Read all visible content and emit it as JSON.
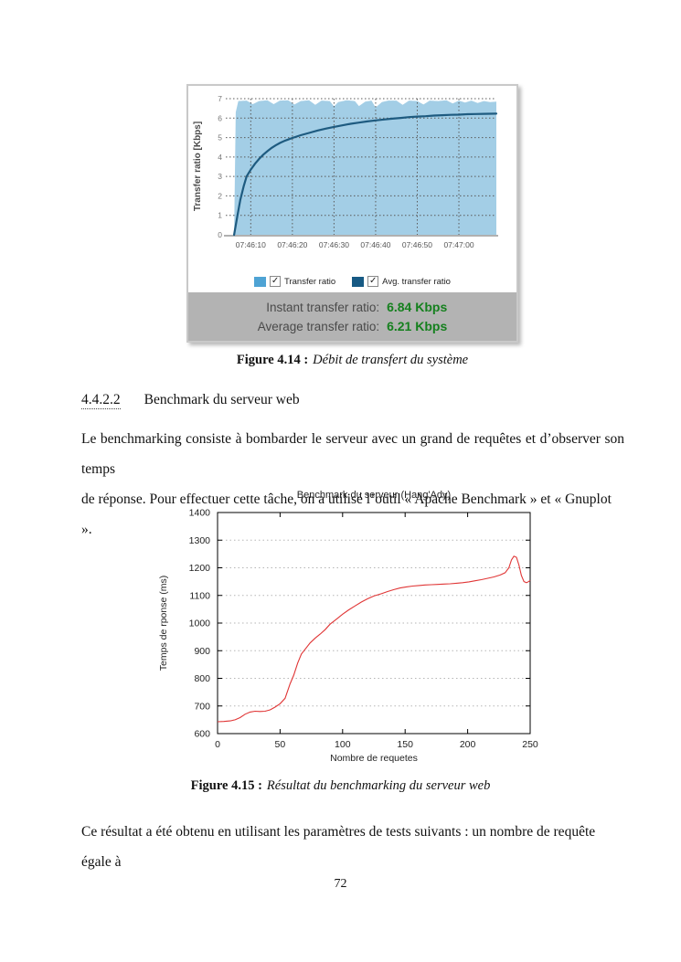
{
  "document": {
    "section": {
      "number": "4.4.2.2",
      "title": "Benchmark du serveur web"
    },
    "captions": {
      "fig414": {
        "label": "Figure 4.14 :",
        "text": "Débit de transfert du système"
      },
      "fig415": {
        "label": "Figure 4.15 :",
        "text": "Résultat du benchmarking du serveur web"
      }
    },
    "paragraph1": {
      "line1": "Le benchmarking consiste à bombarder le serveur avec un grand de requêtes et d’observer son temps",
      "line2": "de réponse. Pour effectuer cette tâche, on a utilisé l’outil « Apache Benchmark » et « Gnuplot »."
    },
    "paragraph2": "Ce résultat a été obtenu en utilisant les paramètres de tests suivants : un nombre de requête égale à",
    "page_number": "72"
  },
  "icons": {
    "checkbox_check": "✓"
  },
  "transfer_panel": {
    "legend": [
      {
        "label": "Transfer ratio",
        "checked": true,
        "swatch_color": "#4ea3d4"
      },
      {
        "label": "Avg. transfer ratio",
        "checked": true,
        "swatch_color": "#175a84"
      }
    ],
    "footer": [
      {
        "label": "Instant transfer ratio:",
        "value": "6.84 Kbps"
      },
      {
        "label": "Average transfer ratio:",
        "value": "6.21 Kbps"
      }
    ],
    "value_color": "#15801e",
    "footer_bg": "#b3b3b3"
  },
  "chart_data": [
    {
      "type": "area",
      "title": "",
      "ylabel": "Transfer ratio [Kbps]",
      "ylim": [
        0,
        7
      ],
      "y_ticks": [
        0,
        1,
        2,
        3,
        4,
        5,
        6,
        7
      ],
      "xlim_seconds_after_074600": [
        4,
        69
      ],
      "x_tick_positions": [
        10,
        20,
        30,
        40,
        50,
        60
      ],
      "x_tick_labels": [
        "07:46:10",
        "07:46:20",
        "07:46:30",
        "07:46:40",
        "07:46:50",
        "07:47:00"
      ],
      "grid": "dotted-both",
      "colors": {
        "area_fill": "#a3cee6",
        "avg_line": "#1e5b80",
        "grid": "#5a5a5a",
        "tick_text": "#555555",
        "ytick_text": "#777777",
        "axis": "#b0b0b0",
        "ylabel_text": "#4a4a4a"
      },
      "series": [
        {
          "name": "Transfer ratio",
          "style": "area",
          "points": [
            [
              6,
              0
            ],
            [
              6.4,
              6.3
            ],
            [
              7,
              6.88
            ],
            [
              9,
              6.9
            ],
            [
              10.5,
              6.72
            ],
            [
              12,
              6.88
            ],
            [
              14,
              6.92
            ],
            [
              15.5,
              6.72
            ],
            [
              17,
              6.9
            ],
            [
              19,
              6.92
            ],
            [
              20.5,
              6.7
            ],
            [
              22,
              6.88
            ],
            [
              24,
              6.92
            ],
            [
              25.5,
              6.68
            ],
            [
              27,
              6.9
            ],
            [
              29,
              6.88
            ],
            [
              30,
              6.6
            ],
            [
              31,
              6.82
            ],
            [
              33,
              6.92
            ],
            [
              35,
              6.88
            ],
            [
              36,
              6.62
            ],
            [
              37.5,
              6.85
            ],
            [
              39,
              6.9
            ],
            [
              40,
              6.55
            ],
            [
              41.5,
              6.82
            ],
            [
              43,
              6.9
            ],
            [
              45,
              6.9
            ],
            [
              46.5,
              6.68
            ],
            [
              48,
              6.9
            ],
            [
              50,
              6.88
            ],
            [
              51.5,
              6.7
            ],
            [
              53,
              6.9
            ],
            [
              55,
              6.88
            ],
            [
              57,
              6.92
            ],
            [
              58.5,
              6.75
            ],
            [
              60,
              6.9
            ],
            [
              61.5,
              6.8
            ],
            [
              63,
              6.9
            ],
            [
              64.5,
              6.78
            ],
            [
              66,
              6.88
            ],
            [
              67.5,
              6.82
            ],
            [
              69,
              6.85
            ]
          ]
        },
        {
          "name": "Avg. transfer ratio",
          "style": "line",
          "points": [
            [
              6,
              0
            ],
            [
              6.8,
              1.0
            ],
            [
              7.5,
              1.8
            ],
            [
              8.3,
              2.5
            ],
            [
              9,
              3.0
            ],
            [
              10,
              3.35
            ],
            [
              11,
              3.65
            ],
            [
              12,
              3.9
            ],
            [
              13,
              4.12
            ],
            [
              14,
              4.3
            ],
            [
              15,
              4.47
            ],
            [
              16,
              4.6
            ],
            [
              17,
              4.72
            ],
            [
              18,
              4.82
            ],
            [
              19,
              4.9
            ],
            [
              20,
              4.98
            ],
            [
              22,
              5.12
            ],
            [
              24,
              5.24
            ],
            [
              26,
              5.36
            ],
            [
              28,
              5.46
            ],
            [
              30,
              5.55
            ],
            [
              32,
              5.63
            ],
            [
              34,
              5.71
            ],
            [
              36,
              5.77
            ],
            [
              38,
              5.83
            ],
            [
              40,
              5.88
            ],
            [
              42,
              5.93
            ],
            [
              44,
              5.97
            ],
            [
              46,
              6.01
            ],
            [
              48,
              6.05
            ],
            [
              50,
              6.08
            ],
            [
              52,
              6.1
            ],
            [
              54,
              6.13
            ],
            [
              56,
              6.15
            ],
            [
              58,
              6.17
            ],
            [
              60,
              6.18
            ],
            [
              62,
              6.2
            ],
            [
              64,
              6.21
            ],
            [
              66,
              6.22
            ],
            [
              69,
              6.23
            ]
          ]
        }
      ],
      "readouts": {
        "instant": "6.84 Kbps",
        "average": "6.21 Kbps"
      }
    },
    {
      "type": "line",
      "title": "Benchmark du serveur (Hang'Ady)",
      "xlabel": "Nombre de requetes",
      "ylabel": "Temps de rponse (ms)",
      "xlim": [
        0,
        250
      ],
      "ylim": [
        600,
        1400
      ],
      "x_ticks": [
        0,
        50,
        100,
        150,
        200,
        250
      ],
      "y_ticks": [
        600,
        700,
        800,
        900,
        1000,
        1100,
        1200,
        1300,
        1400
      ],
      "grid": "dotted-horizontal",
      "colors": {
        "line": "#e03535",
        "frame": "#000000",
        "grid": "#b5b5b5",
        "text": "#222222"
      },
      "points": [
        [
          0,
          643
        ],
        [
          5,
          644
        ],
        [
          10,
          646
        ],
        [
          14,
          650
        ],
        [
          18,
          658
        ],
        [
          22,
          670
        ],
        [
          26,
          678
        ],
        [
          30,
          681
        ],
        [
          34,
          680
        ],
        [
          38,
          681
        ],
        [
          42,
          686
        ],
        [
          46,
          696
        ],
        [
          50,
          708
        ],
        [
          54,
          728
        ],
        [
          58,
          780
        ],
        [
          61,
          812
        ],
        [
          64,
          855
        ],
        [
          67,
          888
        ],
        [
          70,
          905
        ],
        [
          74,
          928
        ],
        [
          78,
          945
        ],
        [
          82,
          960
        ],
        [
          86,
          976
        ],
        [
          90,
          996
        ],
        [
          95,
          1014
        ],
        [
          100,
          1032
        ],
        [
          105,
          1048
        ],
        [
          110,
          1062
        ],
        [
          115,
          1076
        ],
        [
          120,
          1088
        ],
        [
          125,
          1098
        ],
        [
          131,
          1106
        ],
        [
          136,
          1114
        ],
        [
          141,
          1121
        ],
        [
          146,
          1127
        ],
        [
          151,
          1131
        ],
        [
          156,
          1134
        ],
        [
          161,
          1136
        ],
        [
          166,
          1138
        ],
        [
          171,
          1139
        ],
        [
          176,
          1140
        ],
        [
          181,
          1141
        ],
        [
          186,
          1142
        ],
        [
          191,
          1144
        ],
        [
          196,
          1146
        ],
        [
          201,
          1149
        ],
        [
          206,
          1153
        ],
        [
          211,
          1157
        ],
        [
          216,
          1162
        ],
        [
          221,
          1167
        ],
        [
          226,
          1174
        ],
        [
          230,
          1182
        ],
        [
          233,
          1200
        ],
        [
          235,
          1228
        ],
        [
          237,
          1242
        ],
        [
          239,
          1238
        ],
        [
          241,
          1210
        ],
        [
          243,
          1172
        ],
        [
          245,
          1150
        ],
        [
          247,
          1146
        ],
        [
          248,
          1148
        ],
        [
          250,
          1154
        ]
      ]
    }
  ]
}
